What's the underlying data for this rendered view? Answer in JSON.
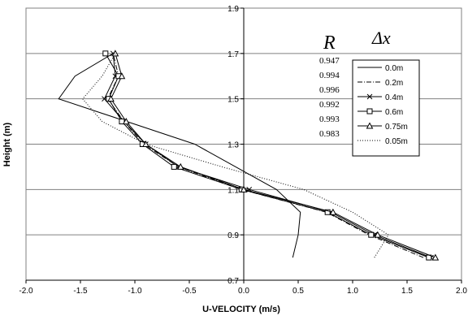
{
  "chart_data": {
    "type": "line",
    "xlabel": "U-VELOCITY (m/s)",
    "ylabel": "Height (m)",
    "xlim": [
      -2.0,
      2.0
    ],
    "ylim": [
      0.7,
      1.9
    ],
    "x_ticks": [
      "-2.0",
      "-1.5",
      "-1.0",
      "-0.5",
      "0.0",
      "0.5",
      "1.0",
      "1.5",
      "2.0"
    ],
    "y_ticks": [
      "0.7",
      "0.9",
      "1.1",
      "1.3",
      "1.5",
      "1.7",
      "1.9"
    ],
    "y_tick_values": [
      0.7,
      0.9,
      1.1,
      1.3,
      1.5,
      1.7,
      1.9
    ],
    "grid": "horizontal",
    "legend_placement": "right",
    "r_header": "R",
    "delta_header": "Δx",
    "r_values": [
      "0.947",
      "0.994",
      "0.996",
      "0.992",
      "0.993",
      "0.983"
    ],
    "series": [
      {
        "name": "0.0m",
        "dash": "solid",
        "marker": "none",
        "points": [
          [
            0.45,
            0.8
          ],
          [
            0.5,
            0.9
          ],
          [
            0.52,
            1.0
          ],
          [
            0.3,
            1.1
          ],
          [
            -0.45,
            1.3
          ],
          [
            -1.7,
            1.5
          ],
          [
            -1.55,
            1.6
          ],
          [
            -1.2,
            1.7
          ]
        ]
      },
      {
        "name": "0.2m",
        "dash": "dashdot",
        "marker": "none",
        "points": [
          [
            1.65,
            0.8
          ],
          [
            1.15,
            0.9
          ],
          [
            0.76,
            1.0
          ],
          [
            -0.02,
            1.1
          ],
          [
            -0.6,
            1.2
          ],
          [
            -0.92,
            1.3
          ],
          [
            -1.1,
            1.4
          ],
          [
            -1.25,
            1.5
          ],
          [
            -1.15,
            1.6
          ],
          [
            -1.2,
            1.7
          ]
        ]
      },
      {
        "name": "0.4m",
        "dash": "solid",
        "marker": "x",
        "points": [
          [
            1.72,
            0.8
          ],
          [
            1.2,
            0.9
          ],
          [
            0.8,
            1.0
          ],
          [
            0.05,
            1.1
          ],
          [
            -0.6,
            1.2
          ],
          [
            -0.9,
            1.3
          ],
          [
            -1.1,
            1.4
          ],
          [
            -1.28,
            1.5
          ],
          [
            -1.18,
            1.6
          ],
          [
            -1.2,
            1.7
          ]
        ]
      },
      {
        "name": "0.6m",
        "dash": "solid",
        "marker": "square",
        "points": [
          [
            1.7,
            0.8
          ],
          [
            1.17,
            0.9
          ],
          [
            0.77,
            1.0
          ],
          [
            -0.02,
            1.1
          ],
          [
            -0.64,
            1.2
          ],
          [
            -0.93,
            1.3
          ],
          [
            -1.12,
            1.4
          ],
          [
            -1.24,
            1.5
          ],
          [
            -1.15,
            1.6
          ],
          [
            -1.27,
            1.7
          ]
        ]
      },
      {
        "name": "0.75m",
        "dash": "solid",
        "marker": "triangle",
        "points": [
          [
            1.76,
            0.8
          ],
          [
            1.23,
            0.9
          ],
          [
            0.82,
            1.0
          ],
          [
            0.0,
            1.1
          ],
          [
            -0.58,
            1.2
          ],
          [
            -0.9,
            1.3
          ],
          [
            -1.08,
            1.4
          ],
          [
            -1.22,
            1.5
          ],
          [
            -1.12,
            1.6
          ],
          [
            -1.18,
            1.7
          ]
        ]
      },
      {
        "name": "0.05m",
        "dash": "dotted",
        "marker": "none",
        "points": [
          [
            1.2,
            0.8
          ],
          [
            1.33,
            0.9
          ],
          [
            1.0,
            1.0
          ],
          [
            0.55,
            1.1
          ],
          [
            -0.2,
            1.2
          ],
          [
            -0.9,
            1.3
          ],
          [
            -1.3,
            1.4
          ],
          [
            -1.48,
            1.5
          ],
          [
            -1.3,
            1.6
          ],
          [
            -1.18,
            1.7
          ]
        ]
      }
    ]
  }
}
